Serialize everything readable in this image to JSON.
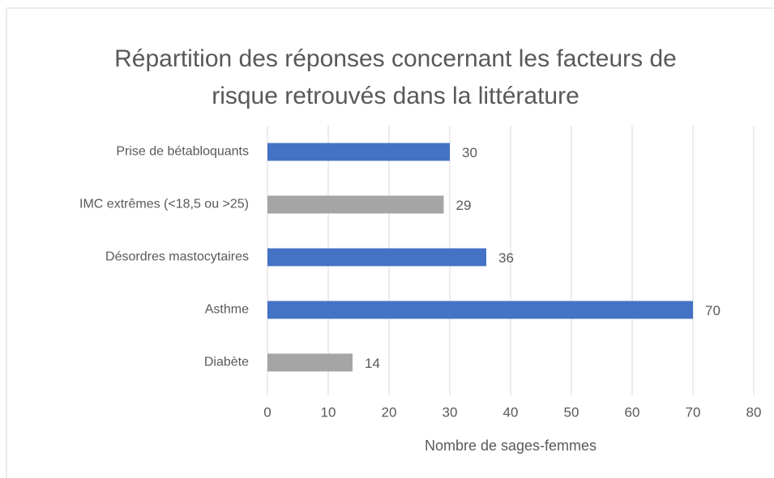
{
  "chart_data": {
    "type": "bar",
    "orientation": "horizontal",
    "title": "Répartition des réponses concernant les facteurs de risque retrouvés dans la littérature",
    "categories": [
      "Prise de bétabloquants",
      "IMC extrêmes (<18,5 ou >25)",
      "Désordres mastocytaires",
      "Asthme",
      "Diabète"
    ],
    "values": [
      30,
      29,
      36,
      70,
      14
    ],
    "colors": [
      "#4472c4",
      "#a5a5a5",
      "#4472c4",
      "#4472c4",
      "#a5a5a5"
    ],
    "xlabel": "Nombre de sages-femmes",
    "xlim": [
      0,
      80
    ],
    "xticks": [
      0,
      10,
      20,
      30,
      40,
      50,
      60,
      70,
      80
    ],
    "grid": true
  }
}
